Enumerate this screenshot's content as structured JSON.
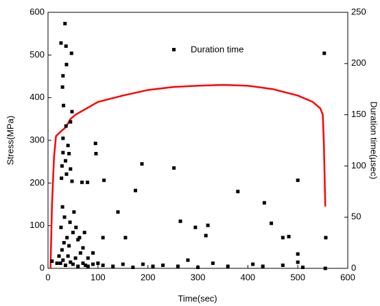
{
  "chart_data": {
    "type": "line",
    "xlabel": "Time(sec)",
    "ylabel": "Stress(MPa)",
    "y2label": "Duration time(µsec)",
    "xlim": [
      0,
      600
    ],
    "xticks": [
      0,
      100,
      200,
      300,
      400,
      500,
      600
    ],
    "ylim": [
      0,
      600
    ],
    "yticks": [
      0,
      100,
      200,
      300,
      400,
      500,
      600
    ],
    "y2lim": [
      0,
      250
    ],
    "y2ticks": [
      0,
      50,
      100,
      150,
      200,
      250
    ],
    "series": [
      {
        "type": "line",
        "color": "#ff0000",
        "x": [
          5,
          8,
          12,
          16,
          25,
          35,
          45,
          55,
          70,
          100,
          150,
          200,
          250,
          300,
          350,
          400,
          450,
          500,
          530,
          545,
          550,
          552,
          553,
          555
        ],
        "values": [
          0,
          150,
          260,
          310,
          320,
          330,
          350,
          360,
          370,
          390,
          405,
          418,
          425,
          428,
          430,
          428,
          420,
          405,
          390,
          375,
          360,
          300,
          250,
          145
        ]
      },
      {
        "type": "scatter",
        "name": "Duration time",
        "color": "#000000",
        "axis": "y2",
        "x": [
          26,
          34,
          36,
          47,
          37,
          30,
          29,
          31,
          36,
          48,
          45,
          30,
          40,
          30,
          42,
          35,
          28,
          45,
          37,
          27,
          48,
          68,
          96,
          95,
          79,
          112,
          188,
          175,
          140,
          155,
          110,
          265,
          295,
          316,
          320,
          252,
          380,
          433,
          447,
          470,
          482,
          500,
          500,
          553,
          556,
          555,
          25,
          30,
          35,
          40,
          45,
          50,
          55,
          60,
          28,
          32,
          38,
          42,
          50,
          56,
          60,
          65,
          70,
          75,
          80,
          90,
          100,
          110,
          130,
          150,
          170,
          190,
          210,
          230,
          260,
          280,
          300,
          330,
          360,
          410,
          430,
          470,
          500,
          510,
          8,
          18,
          22,
          26,
          33,
          29,
          44,
          52,
          63,
          70,
          80,
          73,
          90
        ],
        "values": [
          220,
          239,
          217,
          210,
          199,
          188,
          177,
          159,
          139,
          153,
          143,
          127,
          120,
          113,
          112,
          105,
          100,
          97,
          92,
          88,
          85,
          84,
          112,
          122,
          84,
          86,
          102,
          76,
          55,
          30,
          30,
          46,
          40,
          32,
          42,
          98,
          75,
          64,
          44,
          30,
          31,
          86,
          14,
          210,
          30,
          0,
          5,
          8,
          3,
          12,
          6,
          4,
          10,
          2,
          18,
          25,
          30,
          22,
          35,
          40,
          28,
          15,
          5,
          3,
          2,
          4,
          5,
          3,
          2,
          4,
          1,
          4,
          2,
          3,
          2,
          8,
          1,
          5,
          2,
          4,
          2,
          3,
          6,
          1,
          7,
          5,
          12,
          40,
          50,
          60,
          45,
          55,
          30,
          20,
          10,
          35,
          15
        ]
      }
    ]
  }
}
